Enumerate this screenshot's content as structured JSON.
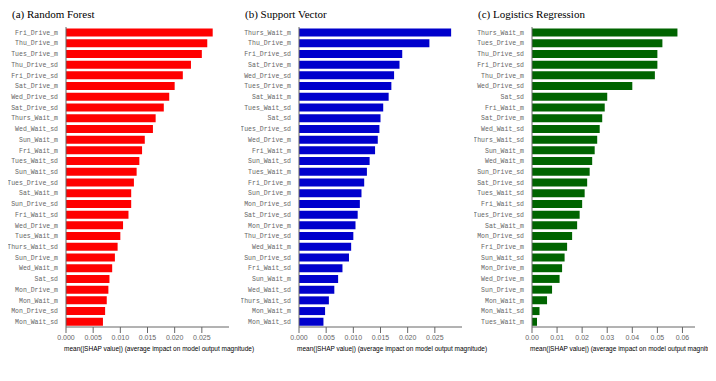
{
  "chart_data": [
    {
      "type": "bar",
      "orientation": "horizontal",
      "title": "(a)  Random Forest",
      "color": "#FF0000",
      "xlabel": "mean(|SHAP value|) (average impact on model output magnitude)",
      "categories": [
        "Fri_Drive_m",
        "Thu_Drive_m",
        "Tues_Drive_m",
        "Thu_Drive_sd",
        "Fri_Drive_sd",
        "Sat_Drive_m",
        "Wed_Drive_sd",
        "Sat_Drive_sd",
        "Thurs_Wait_m",
        "Wed_Wait_sd",
        "Sun_Wait_m",
        "Fri_Wait_m",
        "Tues_Wait_sd",
        "Sun_Wait_sd",
        "Tues_Drive_sd",
        "Sat_Wait_m",
        "Sun_Drive_sd",
        "Fri_Wait_sd",
        "Wed_Drive_m",
        "Tues_Wait_m",
        "Thurs_Wait_sd",
        "Sun_Drive_m",
        "Wed_Wait_m",
        "Sat_sd",
        "Mon_Drive_m",
        "Mon_Wait_m",
        "Mon_Drive_sd",
        "Mon_Wait_sd"
      ],
      "values": [
        0.027,
        0.026,
        0.025,
        0.023,
        0.0215,
        0.02,
        0.019,
        0.018,
        0.0165,
        0.016,
        0.0145,
        0.014,
        0.0135,
        0.013,
        0.0125,
        0.012,
        0.012,
        0.0115,
        0.0105,
        0.01,
        0.0095,
        0.009,
        0.0085,
        0.008,
        0.0078,
        0.0075,
        0.0072,
        0.0068
      ],
      "xlim": [
        0,
        0.03
      ],
      "xticks": [
        {
          "value": 0,
          "label": "0.000"
        },
        0.005,
        {
          "value": 0.01,
          "label": "0.010"
        },
        0.015,
        {
          "value": 0.02,
          "label": "0.020"
        },
        0.025
      ],
      "grid": false
    },
    {
      "type": "bar",
      "orientation": "horizontal",
      "title": "(b)  Support Vector",
      "color": "#0000CC",
      "xlabel": "mean(|SHAP value|) (average impact on model output magnitude)",
      "categories": [
        "Thurs_Wait_m",
        "Thu_Drive_m",
        "Fri_Drive_sd",
        "Sat_Drive_m",
        "Wed_Drive_sd",
        "Tues_Drive_m",
        "Sat_Wait_m",
        "Tues_Wait_sd",
        "Sat_sd",
        "Tues_Drive_sd",
        "Wed_Drive_m",
        "Fri_Wait_m",
        "Sun_Wait_sd",
        "Tues_Wait_m",
        "Fri_Drive_m",
        "Sun_Drive_m",
        "Mon_Drive_sd",
        "Sat_Drive_sd",
        "Mon_Drive_m",
        "Thu_Drive_sd",
        "Wed_Wait_m",
        "Sun_Drive_sd",
        "Fri_Wait_sd",
        "Sun_Wait_m",
        "Wed_Wait_sd",
        "Thurs_Wait_sd",
        "Mon_Wait_m",
        "Mon_Wait_sd"
      ],
      "values": [
        0.028,
        0.024,
        0.019,
        0.0185,
        0.0175,
        0.017,
        0.0165,
        0.0155,
        0.015,
        0.0148,
        0.0145,
        0.014,
        0.013,
        0.0125,
        0.012,
        0.0115,
        0.0112,
        0.0108,
        0.0104,
        0.01,
        0.0096,
        0.0092,
        0.008,
        0.0072,
        0.0065,
        0.0055,
        0.0048,
        0.0045
      ],
      "xlim": [
        0,
        0.03
      ],
      "xticks": [
        {
          "value": 0,
          "label": "0.000"
        },
        0.005,
        {
          "value": 0.01,
          "label": "0.010"
        },
        0.015,
        {
          "value": 0.02,
          "label": "0.020"
        },
        0.025
      ],
      "grid": false
    },
    {
      "type": "bar",
      "orientation": "horizontal",
      "title": "(c)  Logistics Regression",
      "color": "#006400",
      "xlabel": "mean(|SHAP value|) (average impact on model output magnitude)",
      "categories": [
        "Thurs_Wait_m",
        "Tues_Drive_m",
        "Thu_Drive_sd",
        "Fri_Drive_sd",
        "Thu_Drive_m",
        "Wed_Drive_sd",
        "Sat_sd",
        "Fri_Wait_m",
        "Sat_Drive_m",
        "Wed_Wait_sd",
        "Thurs_Wait_sd",
        "Sun_Wait_m",
        "Wed_Wait_m",
        "Sun_Drive_sd",
        "Sat_Drive_sd",
        "Tues_Wait_sd",
        "Fri_Wait_sd",
        "Tues_Drive_sd",
        "Sat_Wait_m",
        "Mon_Drive_sd",
        "Fri_Drive_m",
        "Sun_Wait_sd",
        "Mon_Drive_m",
        "Wed_Drive_m",
        "Sun_Drive_m",
        "Mon_Wait_m",
        "Mon_Wait_sd",
        "Tues_Wait_m"
      ],
      "values": [
        0.058,
        0.052,
        0.05,
        0.05,
        0.049,
        0.04,
        0.03,
        0.029,
        0.028,
        0.027,
        0.026,
        0.025,
        0.024,
        0.023,
        0.022,
        0.021,
        0.02,
        0.019,
        0.018,
        0.016,
        0.014,
        0.013,
        0.012,
        0.011,
        0.008,
        0.006,
        0.003,
        0.002
      ],
      "xlim": [
        0,
        0.065
      ],
      "xticks": [
        {
          "value": 0,
          "label": "0.00"
        },
        0.01,
        0.02,
        0.03,
        0.04,
        0.05,
        0.06
      ],
      "grid": false
    }
  ]
}
